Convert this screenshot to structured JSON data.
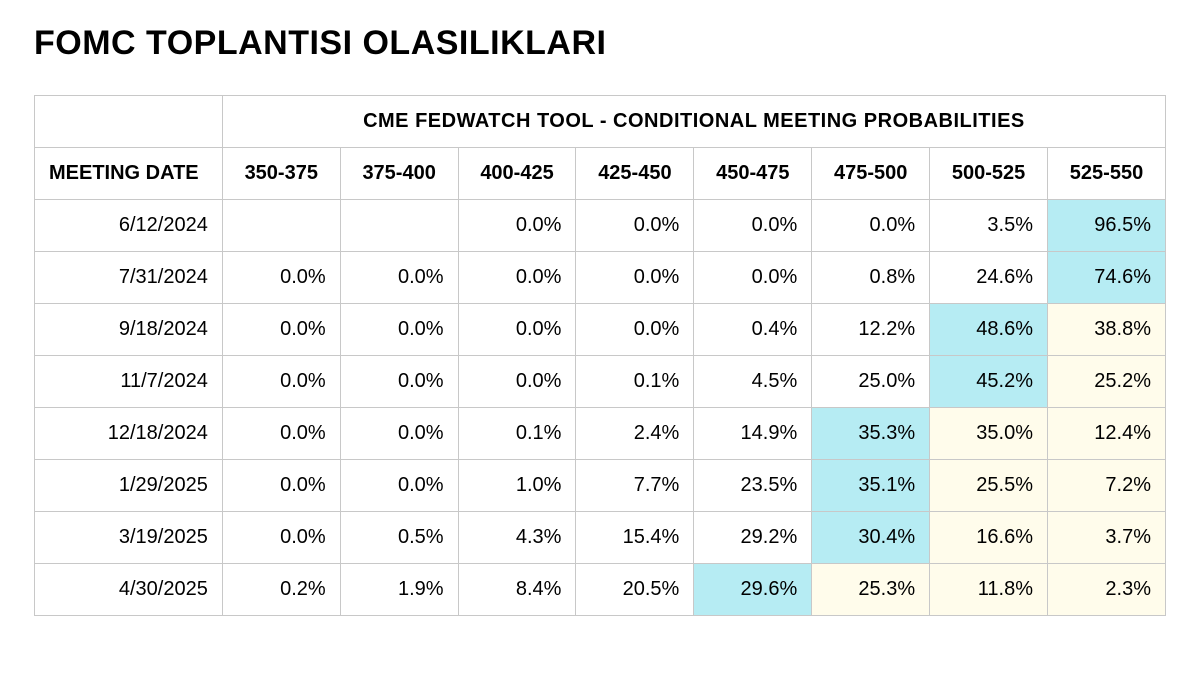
{
  "title": "FOMC TOPLANTISI OLASILIKLARI",
  "table": {
    "type": "table",
    "super_header": "CME FEDWATCH TOOL - CONDITIONAL MEETING PROBABILITIES",
    "date_header": "MEETING DATE",
    "columns": [
      "350-375",
      "375-400",
      "400-425",
      "425-450",
      "450-475",
      "475-500",
      "500-525",
      "525-550"
    ],
    "column_widths": {
      "date": 188,
      "value": 118
    },
    "cell_style": {
      "border_color": "#c8c8c8",
      "header_fontsize": 20,
      "body_fontsize": 20,
      "text_color": "#000000",
      "highlight_blue": "#b6ecf3",
      "highlight_yellow": "#fffceb",
      "background": "#ffffff"
    },
    "rows": [
      {
        "date": "6/12/2024",
        "values": [
          "",
          "",
          "0.0%",
          "0.0%",
          "0.0%",
          "0.0%",
          "3.5%",
          "96.5%"
        ],
        "hl": [
          "",
          "",
          "",
          "",
          "",
          "",
          "",
          "blue"
        ]
      },
      {
        "date": "7/31/2024",
        "values": [
          "0.0%",
          "0.0%",
          "0.0%",
          "0.0%",
          "0.0%",
          "0.8%",
          "24.6%",
          "74.6%"
        ],
        "hl": [
          "",
          "",
          "",
          "",
          "",
          "",
          "",
          "blue"
        ]
      },
      {
        "date": "9/18/2024",
        "values": [
          "0.0%",
          "0.0%",
          "0.0%",
          "0.0%",
          "0.4%",
          "12.2%",
          "48.6%",
          "38.8%"
        ],
        "hl": [
          "",
          "",
          "",
          "",
          "",
          "",
          "blue",
          "yellow"
        ]
      },
      {
        "date": "11/7/2024",
        "values": [
          "0.0%",
          "0.0%",
          "0.0%",
          "0.1%",
          "4.5%",
          "25.0%",
          "45.2%",
          "25.2%"
        ],
        "hl": [
          "",
          "",
          "",
          "",
          "",
          "",
          "blue",
          "yellow"
        ]
      },
      {
        "date": "12/18/2024",
        "values": [
          "0.0%",
          "0.0%",
          "0.1%",
          "2.4%",
          "14.9%",
          "35.3%",
          "35.0%",
          "12.4%"
        ],
        "hl": [
          "",
          "",
          "",
          "",
          "",
          "blue",
          "yellow",
          "yellow"
        ]
      },
      {
        "date": "1/29/2025",
        "values": [
          "0.0%",
          "0.0%",
          "1.0%",
          "7.7%",
          "23.5%",
          "35.1%",
          "25.5%",
          "7.2%"
        ],
        "hl": [
          "",
          "",
          "",
          "",
          "",
          "blue",
          "yellow",
          "yellow"
        ]
      },
      {
        "date": "3/19/2025",
        "values": [
          "0.0%",
          "0.5%",
          "4.3%",
          "15.4%",
          "29.2%",
          "30.4%",
          "16.6%",
          "3.7%"
        ],
        "hl": [
          "",
          "",
          "",
          "",
          "",
          "blue",
          "yellow",
          "yellow"
        ]
      },
      {
        "date": "4/30/2025",
        "values": [
          "0.2%",
          "1.9%",
          "8.4%",
          "20.5%",
          "29.6%",
          "25.3%",
          "11.8%",
          "2.3%"
        ],
        "hl": [
          "",
          "",
          "",
          "",
          "blue",
          "yellow",
          "yellow",
          "yellow"
        ]
      }
    ]
  }
}
